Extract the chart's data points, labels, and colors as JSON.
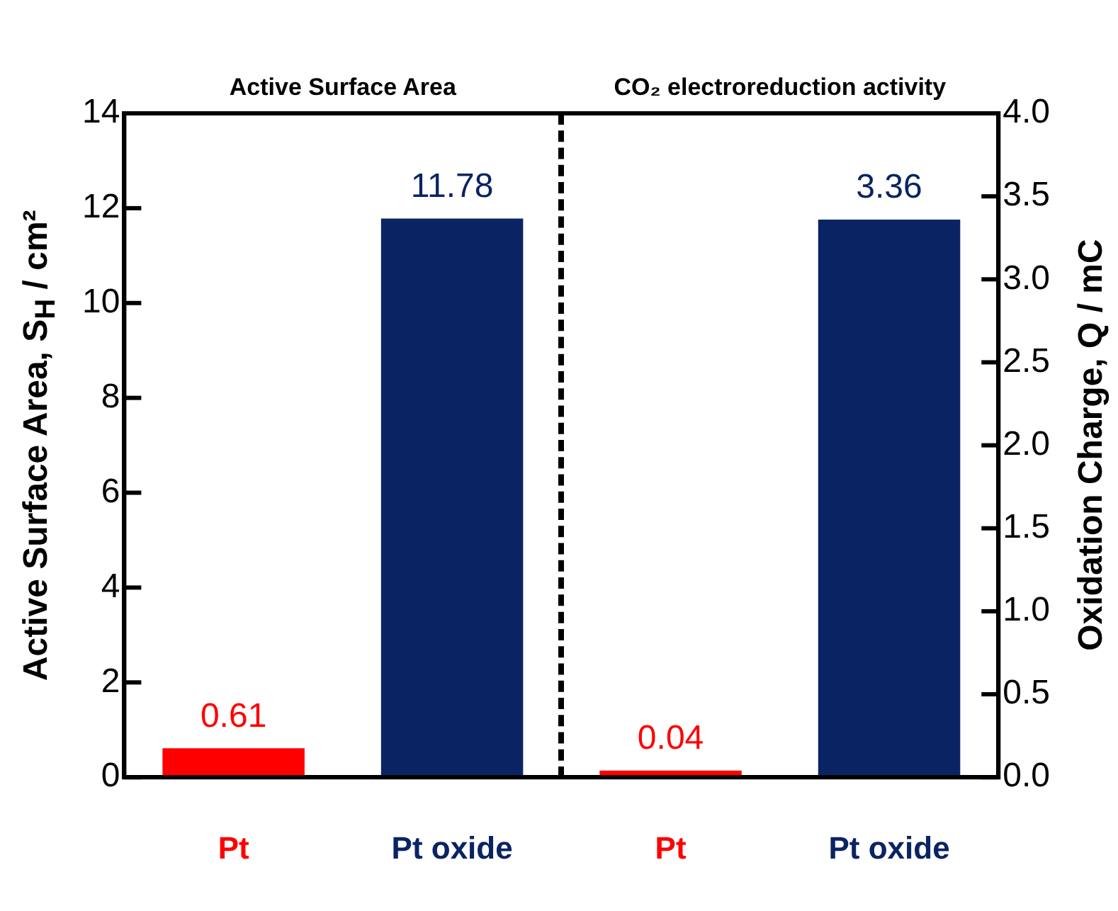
{
  "chart_data": {
    "type": "bar",
    "categories": [
      "Pt",
      "Pt oxide",
      "Pt",
      "Pt oxide"
    ],
    "ylabel": "Active Surface Area,  S$_{H}$ / cm²",
    "y2label": "Oxidation Charge,  Q / mC",
    "annotations": [
      "Active Surface Area",
      "CO₂ electroreduction activity"
    ],
    "series": [
      {
        "values": [
          0.61,
          11.78,
          null,
          null
        ],
        "colors": [
          "#ff0000",
          "#0a2463",
          "#ff0000",
          "#0a2463"
        ],
        "axis": "y"
      },
      {
        "values": [
          null,
          null,
          0.04,
          3.36
        ],
        "colors": [
          "#ff0000",
          "#0a2463",
          "#ff0000",
          "#0a2463"
        ],
        "axis": "y2"
      }
    ],
    "ylim": [
      0,
      14
    ],
    "yticks": [
      0,
      2,
      4,
      6,
      8,
      10,
      12,
      14
    ],
    "y2lim": [
      0,
      4
    ],
    "y2ticks": [
      {
        "value": 0,
        "label": "0.0"
      },
      {
        "value": 0.5,
        "label": "0.5"
      },
      {
        "value": 1,
        "label": "1.0"
      },
      {
        "value": 1.5,
        "label": "1.5"
      },
      {
        "value": 2,
        "label": "2.0"
      },
      {
        "value": 2.5,
        "label": "2.5"
      },
      {
        "value": 3,
        "label": "3.0"
      },
      {
        "value": 3.5,
        "label": "3.5"
      },
      {
        "value": 4,
        "label": "4.0"
      }
    ],
    "data_labels": true,
    "grid": false,
    "legend": false
  }
}
